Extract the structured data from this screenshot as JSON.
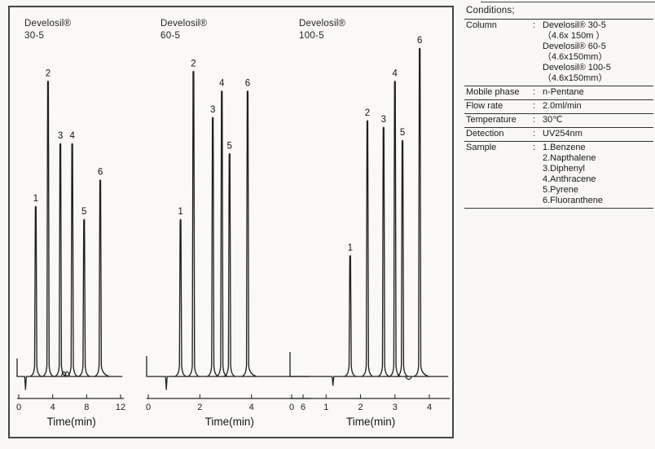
{
  "figure": {
    "background": "#f9f8f4",
    "frame_border_color": "#454545",
    "trace_color": "#1f1f1f",
    "axis_color": "#2a2a2a"
  },
  "conditions": {
    "title": "Conditions;",
    "rows": [
      {
        "label": "Column",
        "sep": ":",
        "lines": [
          "Develosil® 30-5",
          "（4.6x 150m ）",
          "Develosil® 60-5",
          "（4.6x150mm）",
          "Develosil® 100-5",
          "（4.6x150mm）"
        ]
      },
      {
        "label": "Mobile phase",
        "sep": ":",
        "lines": [
          "n-Pentane"
        ]
      },
      {
        "label": "Flow rate",
        "sep": ":",
        "lines": [
          "2.0ml/min"
        ]
      },
      {
        "label": "Temperature",
        "sep": ":",
        "lines": [
          "30℃"
        ]
      },
      {
        "label": "Detection",
        "sep": ":",
        "lines": [
          "UV254nm"
        ]
      },
      {
        "label": "Sample",
        "sep": ":",
        "lines": [
          "1.Benzene",
          "2.Napthalene",
          "3.Diphenyl",
          "4.Anthracene",
          "5.Pyrene",
          "6.Fluoranthene"
        ]
      }
    ]
  },
  "chart_data": [
    {
      "type": "line",
      "title": "Develosil®",
      "grade": "30-5",
      "xlabel": "Time(min)",
      "ylabel": "",
      "x_ticks": [
        0,
        4,
        8,
        12
      ],
      "x_range": [
        0,
        12.4
      ],
      "grid": false,
      "peaks": [
        {
          "label": "1",
          "compound": "Benzene",
          "t": 2.0,
          "intensity": 0.52
        },
        {
          "label": "2",
          "compound": "Napthalene",
          "t": 3.45,
          "intensity": 0.9
        },
        {
          "label": "3",
          "compound": "Diphenyl",
          "t": 4.9,
          "intensity": 0.71
        },
        {
          "label": "4",
          "compound": "Anthracene",
          "t": 6.3,
          "intensity": 0.71
        },
        {
          "label": "5",
          "compound": "Pyrene",
          "t": 7.7,
          "intensity": 0.48
        },
        {
          "label": "6",
          "compound": "Fluoranthene",
          "t": 9.6,
          "intensity": 0.6
        }
      ],
      "injection_mark_t": 0.8,
      "baseline_bumps_t": [
        5.3,
        5.7
      ],
      "negative_dip_t": null
    },
    {
      "type": "line",
      "title": "Develosil®",
      "grade": "60-5",
      "xlabel": "Time(min)",
      "ylabel": "",
      "x_ticks": [
        0,
        2,
        4,
        6
      ],
      "x_range": [
        0,
        6.3
      ],
      "grid": false,
      "peaks": [
        {
          "label": "1",
          "compound": "Benzene",
          "t": 1.25,
          "intensity": 0.48
        },
        {
          "label": "2",
          "compound": "Napthalene",
          "t": 1.75,
          "intensity": 0.93
        },
        {
          "label": "3",
          "compound": "Diphenyl",
          "t": 2.5,
          "intensity": 0.79
        },
        {
          "label": "4",
          "compound": "Anthracene",
          "t": 2.85,
          "intensity": 0.87
        },
        {
          "label": "5",
          "compound": "Pyrene",
          "t": 3.15,
          "intensity": 0.68
        },
        {
          "label": "6",
          "compound": "Fluoranthene",
          "t": 3.85,
          "intensity": 0.87
        }
      ],
      "injection_mark_t": 0.7,
      "baseline_bumps_t": [],
      "negative_dip_t": null
    },
    {
      "type": "line",
      "title": "Develosil®",
      "grade": "100-5",
      "xlabel": "Time(min)",
      "ylabel": "",
      "x_ticks": [
        0,
        1,
        2,
        3,
        4
      ],
      "x_range": [
        0,
        4.6
      ],
      "grid": false,
      "peaks": [
        {
          "label": "1",
          "compound": "Benzene",
          "t": 1.7,
          "intensity": 0.37
        },
        {
          "label": "2",
          "compound": "Napthalene",
          "t": 2.2,
          "intensity": 0.78
        },
        {
          "label": "3",
          "compound": "Diphenyl",
          "t": 2.67,
          "intensity": 0.76
        },
        {
          "label": "4",
          "compound": "Anthracene",
          "t": 3.0,
          "intensity": 0.9
        },
        {
          "label": "5",
          "compound": "Pyrene",
          "t": 3.22,
          "intensity": 0.72
        },
        {
          "label": "6",
          "compound": "Fluoranthene",
          "t": 3.72,
          "intensity": 1.0
        }
      ],
      "injection_mark_t": 1.2,
      "baseline_bumps_t": [],
      "negative_dip_t": 3.4
    }
  ]
}
